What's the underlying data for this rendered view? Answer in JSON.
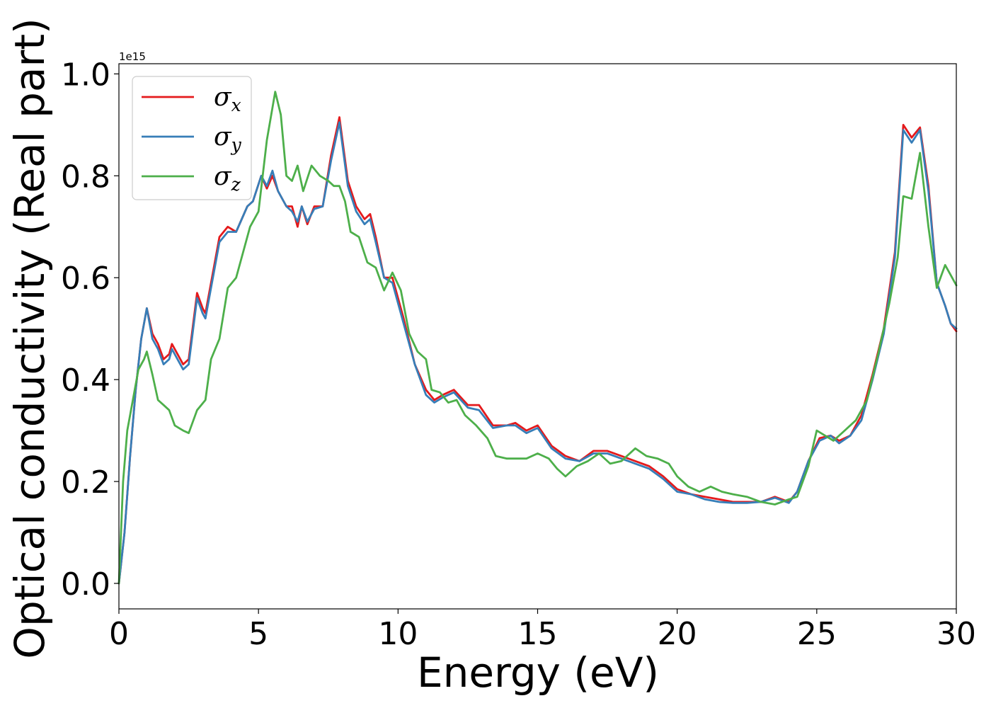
{
  "chart_data": {
    "type": "line",
    "xlabel": "Energy (eV)",
    "ylabel": "Optical conductivity (Real part)",
    "y_offset_label": "1e15",
    "xlim": [
      0,
      30
    ],
    "ylim": [
      -0.05,
      1.02
    ],
    "xticks": [
      0,
      5,
      10,
      15,
      20,
      25,
      30
    ],
    "xtick_labels": [
      "0",
      "5",
      "10",
      "15",
      "20",
      "25",
      "30"
    ],
    "yticks": [
      0.0,
      0.2,
      0.4,
      0.6,
      0.8,
      1.0
    ],
    "ytick_labels": [
      "0.0",
      "0.2",
      "0.4",
      "0.6",
      "0.8",
      "1.0"
    ],
    "grid": false,
    "legend_position": "top-left",
    "series": [
      {
        "name": "σx",
        "symbol": "σ",
        "subscript": "x",
        "color": "#e41a1c",
        "points": [
          [
            0,
            0
          ],
          [
            0.2,
            0.1
          ],
          [
            0.4,
            0.25
          ],
          [
            0.6,
            0.38
          ],
          [
            0.8,
            0.48
          ],
          [
            1.0,
            0.54
          ],
          [
            1.2,
            0.49
          ],
          [
            1.4,
            0.47
          ],
          [
            1.6,
            0.44
          ],
          [
            1.8,
            0.45
          ],
          [
            1.9,
            0.47
          ],
          [
            2.1,
            0.45
          ],
          [
            2.3,
            0.43
          ],
          [
            2.5,
            0.44
          ],
          [
            2.8,
            0.57
          ],
          [
            3.0,
            0.54
          ],
          [
            3.1,
            0.53
          ],
          [
            3.4,
            0.62
          ],
          [
            3.6,
            0.68
          ],
          [
            3.9,
            0.7
          ],
          [
            4.2,
            0.69
          ],
          [
            4.6,
            0.74
          ],
          [
            4.8,
            0.75
          ],
          [
            5.1,
            0.8
          ],
          [
            5.3,
            0.775
          ],
          [
            5.5,
            0.8
          ],
          [
            5.7,
            0.77
          ],
          [
            6.0,
            0.74
          ],
          [
            6.2,
            0.74
          ],
          [
            6.4,
            0.7
          ],
          [
            6.55,
            0.74
          ],
          [
            6.75,
            0.705
          ],
          [
            7.0,
            0.74
          ],
          [
            7.3,
            0.74
          ],
          [
            7.6,
            0.84
          ],
          [
            7.9,
            0.915
          ],
          [
            8.2,
            0.79
          ],
          [
            8.5,
            0.74
          ],
          [
            8.8,
            0.715
          ],
          [
            9.0,
            0.725
          ],
          [
            9.2,
            0.68
          ],
          [
            9.5,
            0.6
          ],
          [
            9.8,
            0.6
          ],
          [
            10.2,
            0.52
          ],
          [
            10.6,
            0.43
          ],
          [
            11.0,
            0.38
          ],
          [
            11.3,
            0.36
          ],
          [
            11.6,
            0.37
          ],
          [
            12.0,
            0.38
          ],
          [
            12.5,
            0.35
          ],
          [
            12.9,
            0.35
          ],
          [
            13.4,
            0.31
          ],
          [
            13.9,
            0.31
          ],
          [
            14.2,
            0.315
          ],
          [
            14.6,
            0.3
          ],
          [
            15.0,
            0.31
          ],
          [
            15.5,
            0.27
          ],
          [
            16.0,
            0.25
          ],
          [
            16.5,
            0.24
          ],
          [
            17.0,
            0.26
          ],
          [
            17.5,
            0.26
          ],
          [
            18.0,
            0.25
          ],
          [
            18.5,
            0.24
          ],
          [
            19.0,
            0.23
          ],
          [
            19.5,
            0.21
          ],
          [
            20.0,
            0.185
          ],
          [
            20.5,
            0.175
          ],
          [
            21.0,
            0.17
          ],
          [
            21.5,
            0.165
          ],
          [
            22.0,
            0.16
          ],
          [
            22.5,
            0.16
          ],
          [
            23.0,
            0.16
          ],
          [
            23.5,
            0.17
          ],
          [
            24.0,
            0.16
          ],
          [
            24.3,
            0.18
          ],
          [
            24.7,
            0.24
          ],
          [
            25.1,
            0.285
          ],
          [
            25.5,
            0.29
          ],
          [
            25.8,
            0.28
          ],
          [
            26.2,
            0.29
          ],
          [
            26.6,
            0.33
          ],
          [
            27.0,
            0.41
          ],
          [
            27.4,
            0.5
          ],
          [
            27.8,
            0.65
          ],
          [
            28.1,
            0.9
          ],
          [
            28.4,
            0.875
          ],
          [
            28.7,
            0.895
          ],
          [
            29.0,
            0.78
          ],
          [
            29.3,
            0.59
          ],
          [
            29.6,
            0.545
          ],
          [
            29.8,
            0.51
          ],
          [
            30.0,
            0.495
          ]
        ]
      },
      {
        "name": "σy",
        "symbol": "σ",
        "subscript": "y",
        "color": "#377eb8",
        "points": [
          [
            0,
            0
          ],
          [
            0.2,
            0.1
          ],
          [
            0.4,
            0.25
          ],
          [
            0.6,
            0.38
          ],
          [
            0.8,
            0.48
          ],
          [
            1.0,
            0.54
          ],
          [
            1.2,
            0.48
          ],
          [
            1.4,
            0.46
          ],
          [
            1.6,
            0.43
          ],
          [
            1.8,
            0.44
          ],
          [
            1.9,
            0.46
          ],
          [
            2.1,
            0.44
          ],
          [
            2.3,
            0.42
          ],
          [
            2.5,
            0.43
          ],
          [
            2.8,
            0.56
          ],
          [
            3.0,
            0.53
          ],
          [
            3.1,
            0.52
          ],
          [
            3.4,
            0.61
          ],
          [
            3.6,
            0.67
          ],
          [
            3.9,
            0.69
          ],
          [
            4.2,
            0.69
          ],
          [
            4.6,
            0.74
          ],
          [
            4.8,
            0.75
          ],
          [
            5.1,
            0.8
          ],
          [
            5.3,
            0.78
          ],
          [
            5.5,
            0.81
          ],
          [
            5.7,
            0.77
          ],
          [
            6.0,
            0.74
          ],
          [
            6.2,
            0.73
          ],
          [
            6.4,
            0.71
          ],
          [
            6.55,
            0.74
          ],
          [
            6.75,
            0.71
          ],
          [
            7.0,
            0.735
          ],
          [
            7.3,
            0.74
          ],
          [
            7.6,
            0.83
          ],
          [
            7.9,
            0.905
          ],
          [
            8.2,
            0.78
          ],
          [
            8.5,
            0.73
          ],
          [
            8.8,
            0.705
          ],
          [
            9.0,
            0.715
          ],
          [
            9.2,
            0.67
          ],
          [
            9.5,
            0.6
          ],
          [
            9.8,
            0.59
          ],
          [
            10.2,
            0.51
          ],
          [
            10.6,
            0.43
          ],
          [
            11.0,
            0.37
          ],
          [
            11.3,
            0.355
          ],
          [
            11.6,
            0.365
          ],
          [
            12.0,
            0.375
          ],
          [
            12.5,
            0.345
          ],
          [
            12.9,
            0.34
          ],
          [
            13.4,
            0.305
          ],
          [
            13.9,
            0.31
          ],
          [
            14.2,
            0.31
          ],
          [
            14.6,
            0.295
          ],
          [
            15.0,
            0.305
          ],
          [
            15.5,
            0.265
          ],
          [
            16.0,
            0.245
          ],
          [
            16.5,
            0.24
          ],
          [
            17.0,
            0.255
          ],
          [
            17.5,
            0.255
          ],
          [
            18.0,
            0.245
          ],
          [
            18.5,
            0.235
          ],
          [
            19.0,
            0.225
          ],
          [
            19.5,
            0.205
          ],
          [
            20.0,
            0.18
          ],
          [
            20.5,
            0.175
          ],
          [
            21.0,
            0.165
          ],
          [
            21.5,
            0.16
          ],
          [
            22.0,
            0.158
          ],
          [
            22.5,
            0.158
          ],
          [
            23.0,
            0.16
          ],
          [
            23.5,
            0.168
          ],
          [
            24.0,
            0.158
          ],
          [
            24.3,
            0.18
          ],
          [
            24.7,
            0.24
          ],
          [
            25.1,
            0.28
          ],
          [
            25.5,
            0.29
          ],
          [
            25.8,
            0.275
          ],
          [
            26.2,
            0.29
          ],
          [
            26.6,
            0.32
          ],
          [
            27.0,
            0.4
          ],
          [
            27.4,
            0.49
          ],
          [
            27.8,
            0.64
          ],
          [
            28.1,
            0.89
          ],
          [
            28.4,
            0.865
          ],
          [
            28.7,
            0.89
          ],
          [
            29.0,
            0.77
          ],
          [
            29.3,
            0.59
          ],
          [
            29.6,
            0.545
          ],
          [
            29.8,
            0.51
          ],
          [
            30.0,
            0.5
          ]
        ]
      },
      {
        "name": "σz",
        "symbol": "σ",
        "subscript": "z",
        "color": "#4daf4a",
        "points": [
          [
            0,
            0
          ],
          [
            0.15,
            0.2
          ],
          [
            0.3,
            0.3
          ],
          [
            0.5,
            0.36
          ],
          [
            0.7,
            0.42
          ],
          [
            0.9,
            0.44
          ],
          [
            1.0,
            0.455
          ],
          [
            1.2,
            0.41
          ],
          [
            1.4,
            0.36
          ],
          [
            1.6,
            0.35
          ],
          [
            1.8,
            0.34
          ],
          [
            2.0,
            0.31
          ],
          [
            2.3,
            0.3
          ],
          [
            2.5,
            0.295
          ],
          [
            2.8,
            0.34
          ],
          [
            3.1,
            0.36
          ],
          [
            3.3,
            0.44
          ],
          [
            3.6,
            0.48
          ],
          [
            3.9,
            0.58
          ],
          [
            4.2,
            0.6
          ],
          [
            4.5,
            0.66
          ],
          [
            4.7,
            0.7
          ],
          [
            5.0,
            0.73
          ],
          [
            5.3,
            0.87
          ],
          [
            5.6,
            0.965
          ],
          [
            5.8,
            0.92
          ],
          [
            6.0,
            0.8
          ],
          [
            6.2,
            0.79
          ],
          [
            6.4,
            0.82
          ],
          [
            6.6,
            0.77
          ],
          [
            6.9,
            0.82
          ],
          [
            7.2,
            0.8
          ],
          [
            7.5,
            0.79
          ],
          [
            7.7,
            0.78
          ],
          [
            7.9,
            0.78
          ],
          [
            8.1,
            0.75
          ],
          [
            8.3,
            0.69
          ],
          [
            8.6,
            0.68
          ],
          [
            8.9,
            0.63
          ],
          [
            9.2,
            0.62
          ],
          [
            9.5,
            0.575
          ],
          [
            9.8,
            0.61
          ],
          [
            10.1,
            0.575
          ],
          [
            10.4,
            0.49
          ],
          [
            10.7,
            0.455
          ],
          [
            11.0,
            0.44
          ],
          [
            11.2,
            0.38
          ],
          [
            11.5,
            0.375
          ],
          [
            11.8,
            0.355
          ],
          [
            12.1,
            0.36
          ],
          [
            12.4,
            0.33
          ],
          [
            12.8,
            0.31
          ],
          [
            13.2,
            0.285
          ],
          [
            13.5,
            0.25
          ],
          [
            13.9,
            0.245
          ],
          [
            14.2,
            0.245
          ],
          [
            14.6,
            0.245
          ],
          [
            15.0,
            0.255
          ],
          [
            15.4,
            0.245
          ],
          [
            15.7,
            0.225
          ],
          [
            16.0,
            0.21
          ],
          [
            16.4,
            0.23
          ],
          [
            16.8,
            0.24
          ],
          [
            17.2,
            0.255
          ],
          [
            17.6,
            0.235
          ],
          [
            18.0,
            0.24
          ],
          [
            18.5,
            0.265
          ],
          [
            18.9,
            0.25
          ],
          [
            19.3,
            0.245
          ],
          [
            19.7,
            0.235
          ],
          [
            20.0,
            0.21
          ],
          [
            20.4,
            0.19
          ],
          [
            20.8,
            0.18
          ],
          [
            21.2,
            0.19
          ],
          [
            21.6,
            0.18
          ],
          [
            22.0,
            0.175
          ],
          [
            22.5,
            0.17
          ],
          [
            23.0,
            0.16
          ],
          [
            23.5,
            0.155
          ],
          [
            24.0,
            0.165
          ],
          [
            24.3,
            0.17
          ],
          [
            24.7,
            0.23
          ],
          [
            25.0,
            0.3
          ],
          [
            25.3,
            0.29
          ],
          [
            25.6,
            0.28
          ],
          [
            26.0,
            0.3
          ],
          [
            26.4,
            0.32
          ],
          [
            26.8,
            0.36
          ],
          [
            27.2,
            0.45
          ],
          [
            27.6,
            0.55
          ],
          [
            27.9,
            0.64
          ],
          [
            28.1,
            0.76
          ],
          [
            28.4,
            0.755
          ],
          [
            28.7,
            0.845
          ],
          [
            29.0,
            0.7
          ],
          [
            29.3,
            0.58
          ],
          [
            29.6,
            0.625
          ],
          [
            29.8,
            0.605
          ],
          [
            30.0,
            0.585
          ]
        ]
      }
    ]
  }
}
